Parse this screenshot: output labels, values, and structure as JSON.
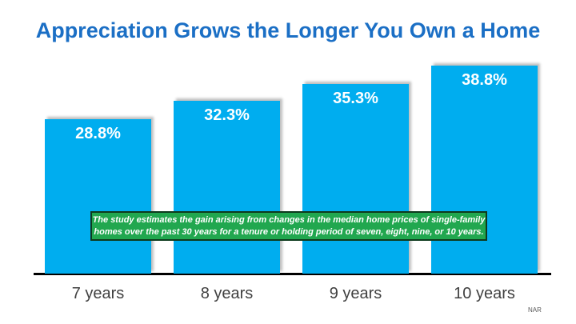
{
  "page": {
    "title": "Appreciation Grows the Longer You Own a Home",
    "source": "NAR"
  },
  "annotation": {
    "line1": "The study estimates the gain arising from changes in the median home prices of single-family",
    "line2": "homes over the past 30 years for a tenure or holding period of seven, eight, nine, or 10 years."
  },
  "colors": {
    "bar": "#00ADEF",
    "title": "#1B6FC5",
    "annotation_bg": "#21A74F",
    "annotation_border": "#0E3A1E",
    "axis": "#000000",
    "category_label": "#404040",
    "source": "#595959"
  },
  "chart_data": {
    "type": "bar",
    "title": "Appreciation Grows the Longer You Own a Home",
    "categories": [
      "7 years",
      "8 years",
      "9 years",
      "10 years"
    ],
    "values": [
      28.8,
      32.3,
      35.3,
      38.8
    ],
    "value_labels": [
      "28.8%",
      "32.3%",
      "35.3%",
      "38.8%"
    ],
    "unit": "%",
    "xlabel": "",
    "ylabel": "",
    "ylim": [
      0,
      40
    ],
    "grid": false,
    "legend": false,
    "bar_color": "#00ADEF",
    "annotation": "The study estimates the gain arising from changes in the median home prices of single-family homes over the past 30 years for a tenure or holding period of seven, eight, nine, or 10 years.",
    "source": "NAR"
  }
}
